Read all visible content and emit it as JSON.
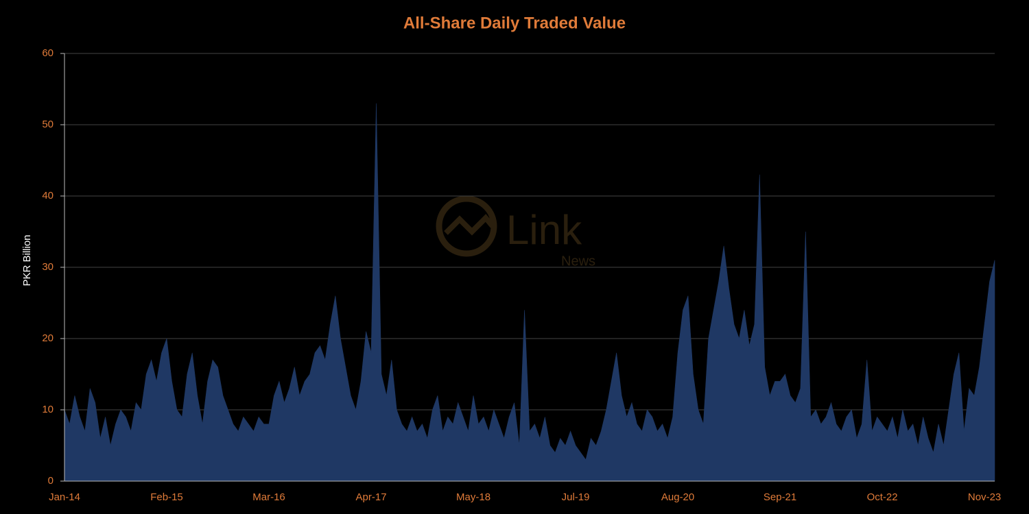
{
  "chart_data": {
    "type": "area",
    "title": "All-Share Daily Traded Value",
    "y_label": "PKR Billion",
    "watermark": {
      "brand": "Link",
      "sub": "News"
    },
    "categories": [
      "Jan-14",
      null,
      null,
      null,
      null,
      null,
      null,
      null,
      null,
      null,
      null,
      null,
      null,
      null,
      null,
      null,
      null,
      null,
      null,
      null,
      "Feb-15",
      null,
      null,
      null,
      null,
      null,
      null,
      null,
      null,
      null,
      null,
      null,
      null,
      null,
      null,
      null,
      null,
      null,
      null,
      null,
      "Mar-16",
      null,
      null,
      null,
      null,
      null,
      null,
      null,
      null,
      null,
      null,
      null,
      null,
      null,
      null,
      null,
      null,
      null,
      null,
      null,
      "Apr-17",
      null,
      null,
      null,
      null,
      null,
      null,
      null,
      null,
      null,
      null,
      null,
      null,
      null,
      null,
      null,
      null,
      null,
      null,
      null,
      "May-18",
      null,
      null,
      null,
      null,
      null,
      null,
      null,
      null,
      null,
      null,
      null,
      null,
      null,
      null,
      null,
      null,
      null,
      null,
      null,
      "Jul-19",
      null,
      null,
      null,
      null,
      null,
      null,
      null,
      null,
      null,
      null,
      null,
      null,
      null,
      null,
      null,
      null,
      null,
      null,
      null,
      "Aug-20",
      null,
      null,
      null,
      null,
      null,
      null,
      null,
      null,
      null,
      null,
      null,
      null,
      null,
      null,
      null,
      null,
      null,
      null,
      null,
      "Sep-21",
      null,
      null,
      null,
      null,
      null,
      null,
      null,
      null,
      null,
      null,
      null,
      null,
      null,
      null,
      null,
      null,
      null,
      null,
      null,
      "Oct-22",
      null,
      null,
      null,
      null,
      null,
      null,
      null,
      null,
      null,
      null,
      null,
      null,
      null,
      null,
      null,
      null,
      null,
      null,
      null,
      "Nov-23",
      null,
      null
    ],
    "values": [
      10,
      8,
      12,
      9,
      7,
      13,
      11,
      6,
      9,
      5,
      8,
      10,
      9,
      7,
      11,
      10,
      15,
      17,
      14,
      18,
      20,
      14,
      10,
      9,
      15,
      18,
      12,
      8,
      14,
      17,
      16,
      12,
      10,
      8,
      7,
      9,
      8,
      7,
      9,
      8,
      8,
      12,
      14,
      11,
      13,
      16,
      12,
      14,
      15,
      18,
      19,
      17,
      22,
      26,
      20,
      16,
      12,
      10,
      14,
      21,
      18,
      53,
      15,
      12,
      17,
      10,
      8,
      7,
      9,
      7,
      8,
      6,
      10,
      12,
      7,
      9,
      8,
      11,
      9,
      7,
      12,
      8,
      9,
      7,
      10,
      8,
      6,
      9,
      11,
      5,
      24,
      7,
      8,
      6,
      9,
      5,
      4,
      6,
      5,
      7,
      5,
      4,
      3,
      6,
      5,
      7,
      10,
      14,
      18,
      12,
      9,
      11,
      8,
      7,
      10,
      9,
      7,
      8,
      6,
      9,
      18,
      24,
      26,
      15,
      10,
      8,
      20,
      24,
      28,
      33,
      27,
      22,
      20,
      24,
      19,
      22,
      43,
      16,
      12,
      14,
      14,
      15,
      12,
      11,
      13,
      35,
      9,
      10,
      8,
      9,
      11,
      8,
      7,
      9,
      10,
      6,
      8,
      17,
      7,
      9,
      8,
      7,
      9,
      6,
      10,
      7,
      8,
      5,
      9,
      6,
      4,
      8,
      5,
      10,
      15,
      18,
      7,
      13,
      12,
      16,
      22,
      28,
      31
    ],
    "color": "#1f3864",
    "ylim": [
      0,
      60
    ],
    "yticks": [
      0,
      10,
      20,
      30,
      40,
      50,
      60
    ],
    "grid": true
  }
}
